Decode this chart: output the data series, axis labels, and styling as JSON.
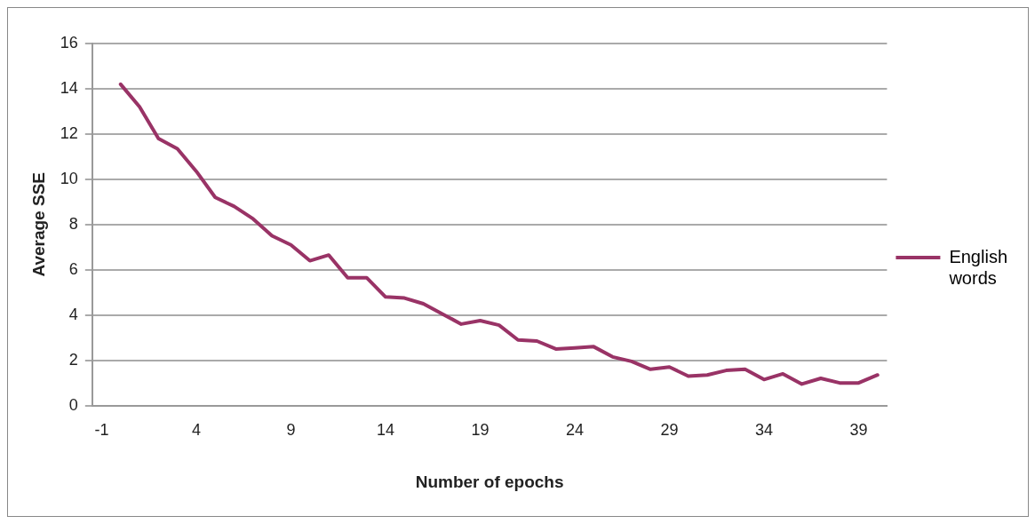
{
  "chart_data": {
    "type": "line",
    "xlabel": "Number of epochs",
    "ylabel": "Average SSE",
    "x": [
      0,
      1,
      2,
      3,
      4,
      5,
      6,
      7,
      8,
      9,
      10,
      11,
      12,
      13,
      14,
      15,
      16,
      17,
      18,
      19,
      20,
      21,
      22,
      23,
      24,
      25,
      26,
      27,
      28,
      29,
      30,
      31,
      32,
      33,
      34,
      35,
      36,
      37,
      38,
      39,
      40
    ],
    "series": [
      {
        "name": "English words",
        "color": "#993366",
        "values": [
          14.2,
          13.2,
          11.8,
          11.35,
          10.35,
          9.2,
          8.8,
          8.25,
          7.5,
          7.1,
          6.4,
          6.65,
          5.65,
          5.65,
          4.8,
          4.75,
          4.5,
          4.05,
          3.6,
          3.75,
          3.55,
          2.9,
          2.85,
          2.5,
          2.55,
          2.6,
          2.15,
          1.95,
          1.6,
          1.7,
          1.3,
          1.35,
          1.55,
          1.6,
          1.15,
          1.4,
          0.95,
          1.2,
          1.0,
          1.0,
          1.35
        ]
      }
    ],
    "xlim": [
      -1.5,
      40.5
    ],
    "xticks": [
      -1,
      4,
      9,
      14,
      19,
      24,
      29,
      34,
      39
    ],
    "ylim": [
      0,
      16
    ],
    "yticks": [
      0,
      2,
      4,
      6,
      8,
      10,
      12,
      14,
      16
    ],
    "grid": "y",
    "legend": "right",
    "marker": "none",
    "line_style": "solid"
  }
}
